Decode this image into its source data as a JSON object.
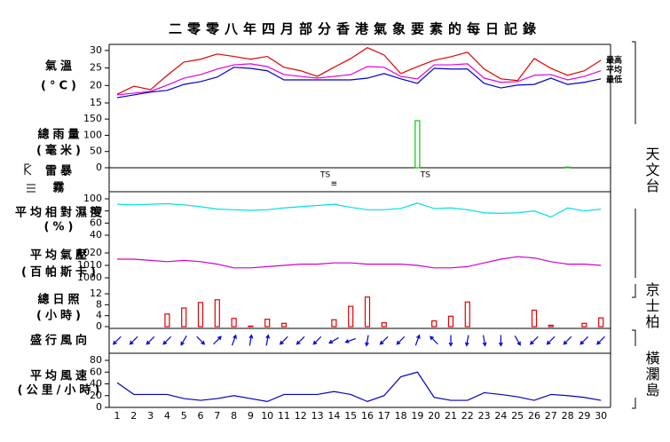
{
  "title": "二零零八年四月部分香港氣象要素的每日記錄",
  "stations": [
    "天文台",
    "京士柏",
    "橫瀾島"
  ],
  "chart_data": [
    {
      "type": "line",
      "ylabel": "氣溫",
      "yunit": "(°C)",
      "ylim": [
        15,
        32
      ],
      "yticks": [
        15,
        20,
        25,
        30
      ],
      "series": [
        {
          "name": "最高",
          "color": "#e00000",
          "values": [
            17.5,
            19.8,
            18.8,
            22.9,
            26.7,
            27.5,
            29,
            28.3,
            27.5,
            28.3,
            25.2,
            24.2,
            22.6,
            25.2,
            27.7,
            30.8,
            28.7,
            23.4,
            25.4,
            27.2,
            28.2,
            29.5,
            24.7,
            21.9,
            21.4,
            27.7,
            24.9,
            22.9,
            24.2,
            27.2
          ]
        },
        {
          "name": "平均",
          "color": "#e000e0",
          "values": [
            17.3,
            17.8,
            18.3,
            20.1,
            22.1,
            23.1,
            24.7,
            25.9,
            26.2,
            25.4,
            23.1,
            22.6,
            22.1,
            22.6,
            23.1,
            25.4,
            25.2,
            22.6,
            21.9,
            25.9,
            25.9,
            26.2,
            22.1,
            20.9,
            21.1,
            22.9,
            23.1,
            21.6,
            22.6,
            24.2
          ]
        },
        {
          "name": "最低",
          "color": "#0000d0",
          "values": [
            16.5,
            17.3,
            18.1,
            18.6,
            20.3,
            21.1,
            22.4,
            25.2,
            24.9,
            24.2,
            21.6,
            21.6,
            21.6,
            21.6,
            21.6,
            22.1,
            23.4,
            21.9,
            20.6,
            24.9,
            24.7,
            24.7,
            20.6,
            19.3,
            20.1,
            20.3,
            22.1,
            20.3,
            20.9,
            21.9
          ]
        }
      ]
    },
    {
      "type": "bar",
      "ylabel": "總雨量",
      "yunit": "(毫米)",
      "ylim": [
        0,
        175
      ],
      "yticks": [
        0,
        50,
        100,
        150
      ],
      "color": "#00cc00",
      "values": [
        0,
        0,
        0,
        0,
        null,
        null,
        null,
        null,
        null,
        null,
        null,
        null,
        0,
        null,
        null,
        null,
        null,
        null,
        145,
        null,
        null,
        null,
        0,
        0,
        0,
        null,
        null,
        2,
        null,
        null
      ]
    },
    {
      "type": "weather",
      "series": [
        {
          "name": "雷暴",
          "values": [
            null,
            null,
            null,
            null,
            null,
            null,
            null,
            null,
            null,
            null,
            null,
            null,
            "TS",
            null,
            null,
            null,
            null,
            null,
            "TS",
            null,
            null,
            null,
            null,
            null,
            null,
            null,
            null,
            null,
            null,
            null
          ]
        },
        {
          "name": "霧",
          "values": [
            null,
            null,
            null,
            null,
            null,
            null,
            null,
            null,
            null,
            null,
            null,
            null,
            null,
            "≡",
            null,
            null,
            null,
            null,
            null,
            null,
            null,
            null,
            null,
            null,
            null,
            null,
            null,
            null,
            null,
            null
          ]
        }
      ]
    },
    {
      "type": "line",
      "ylabel": "平均相對濕度",
      "yunit": "(%)",
      "ylim": [
        40,
        100
      ],
      "yticks": [
        40,
        60,
        80,
        100
      ],
      "series": [
        {
          "color": "#00e0e0",
          "values": [
            91,
            90,
            91,
            92,
            90,
            87,
            83,
            82,
            81,
            82,
            85,
            87,
            89,
            91,
            86,
            82,
            82,
            84,
            93,
            84,
            85,
            82,
            77,
            76,
            77,
            80,
            70,
            85,
            80,
            83
          ]
        }
      ]
    },
    {
      "type": "line",
      "ylabel": "平均氣壓",
      "yunit": "(百帕斯卡)",
      "ylim": [
        1000,
        1020
      ],
      "yticks": [
        1000,
        1010,
        1020
      ],
      "series": [
        {
          "color": "#d000d0",
          "values": [
            1015,
            1015,
            1014,
            1013,
            1014,
            1013,
            1011,
            1008,
            1008,
            1009,
            1010,
            1011,
            1011,
            1012,
            1012,
            1011,
            1011,
            1011,
            1010,
            1008,
            1008,
            1009,
            1012,
            1015,
            1017,
            1016,
            1013,
            1011,
            1011,
            1010
          ]
        }
      ]
    },
    {
      "type": "bar",
      "ylabel": "總日照",
      "yunit": "(小時)",
      "ylim": [
        0,
        12
      ],
      "yticks": [
        0,
        4,
        8,
        12
      ],
      "color": "#e00000",
      "values": [
        null,
        null,
        null,
        4.6,
        6.8,
        8.8,
        9.8,
        3,
        0.2,
        2.7,
        1.2,
        null,
        null,
        2.5,
        7.4,
        10.8,
        1.4,
        null,
        null,
        2.1,
        3.8,
        9,
        null,
        null,
        null,
        6,
        0.5,
        null,
        1.2,
        3.2
      ]
    },
    {
      "type": "arrows",
      "ylabel": "盛行風向",
      "color": "#0000d0",
      "values": [
        45,
        45,
        45,
        45,
        30,
        315,
        225,
        200,
        190,
        190,
        45,
        45,
        45,
        60,
        70,
        10,
        45,
        45,
        200,
        135,
        0,
        10,
        350,
        0,
        330,
        45,
        45,
        45,
        45,
        45
      ]
    },
    {
      "type": "line",
      "ylabel": "平均風速",
      "yunit": "(公里/小時)",
      "ylim": [
        0,
        80
      ],
      "yticks": [
        0,
        20,
        40,
        60,
        80
      ],
      "categories": [
        "1",
        "2",
        "3",
        "4",
        "5",
        "6",
        "7",
        "8",
        "9",
        "10",
        "11",
        "12",
        "13",
        "14",
        "15",
        "16",
        "17",
        "18",
        "19",
        "20",
        "21",
        "22",
        "23",
        "24",
        "25",
        "26",
        "27",
        "28",
        "29",
        "30"
      ],
      "series": [
        {
          "color": "#0000c0",
          "values": [
            42,
            22,
            22,
            22,
            15,
            12,
            15,
            20,
            15,
            10,
            22,
            22,
            22,
            27,
            22,
            10,
            20,
            52,
            60,
            17,
            12,
            12,
            25,
            22,
            18,
            12,
            22,
            20,
            17,
            12
          ]
        }
      ]
    }
  ]
}
